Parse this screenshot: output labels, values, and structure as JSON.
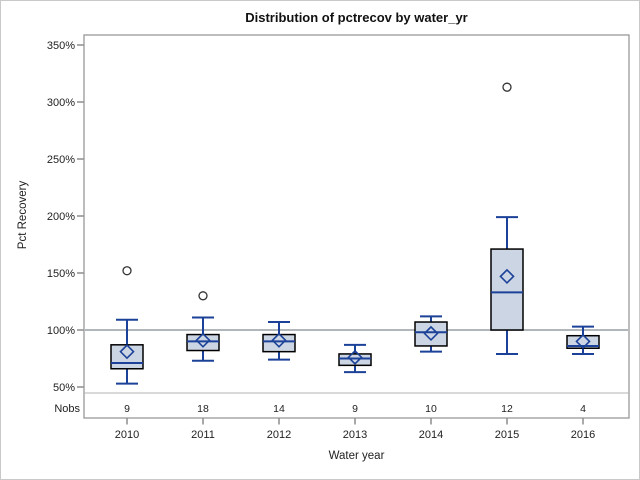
{
  "window": {
    "background": "#ffffff",
    "border_color": "#c9c9c9"
  },
  "chart_data": {
    "type": "boxplot",
    "title": "Distribution of pctrecov by water_yr",
    "xlabel": "Water year",
    "ylabel": "Pct Recovery",
    "nobs_label": "Nobs",
    "categories": [
      "2010",
      "2011",
      "2012",
      "2013",
      "2014",
      "2015",
      "2016"
    ],
    "yticks": [
      {
        "value": 350,
        "label": "350%"
      },
      {
        "value": 300,
        "label": "300%"
      },
      {
        "value": 250,
        "label": "250%"
      },
      {
        "value": 200,
        "label": "200%"
      },
      {
        "value": 150,
        "label": "150%"
      },
      {
        "value": 100,
        "label": "100%"
      },
      {
        "value": 50,
        "label": "50%"
      }
    ],
    "ylim": [
      50,
      350
    ],
    "grid": false,
    "legend": "none",
    "reference_line": 100,
    "series": [
      {
        "category": "2010",
        "n": 9,
        "whisker_low": 53,
        "q1": 66,
        "median": 71,
        "mean": 81,
        "q3": 87,
        "whisker_high": 109,
        "outliers": [
          152
        ]
      },
      {
        "category": "2011",
        "n": 18,
        "whisker_low": 73,
        "q1": 82,
        "median": 90,
        "mean": 91,
        "q3": 96,
        "whisker_high": 111,
        "outliers": [
          130
        ]
      },
      {
        "category": "2012",
        "n": 14,
        "whisker_low": 74,
        "q1": 81,
        "median": 90,
        "mean": 91,
        "q3": 96,
        "whisker_high": 107,
        "outliers": []
      },
      {
        "category": "2013",
        "n": 9,
        "whisker_low": 63,
        "q1": 69,
        "median": 75,
        "mean": 76,
        "q3": 79,
        "whisker_high": 87,
        "outliers": []
      },
      {
        "category": "2014",
        "n": 10,
        "whisker_low": 81,
        "q1": 86,
        "median": 98,
        "mean": 97,
        "q3": 107,
        "whisker_high": 112,
        "outliers": []
      },
      {
        "category": "2015",
        "n": 12,
        "whisker_low": 79,
        "q1": 100,
        "median": 133,
        "mean": 147,
        "q3": 171,
        "whisker_high": 199,
        "outliers": [
          313
        ]
      },
      {
        "category": "2016",
        "n": 4,
        "whisker_low": 79,
        "q1": 84,
        "median": 86,
        "mean": 90,
        "q3": 95,
        "whisker_high": 103,
        "outliers": []
      }
    ],
    "colors": {
      "box_fill": "#ccd5e3",
      "box_border": "#000000",
      "whisker": "#1b4298",
      "median": "#1b4298",
      "mean_marker": "#1b4298",
      "outlier": "#333333",
      "reference_line": "#a6abb0",
      "frame": "#999999",
      "separator": "#b3b3b3",
      "tick": "#707070",
      "text": "#222222"
    }
  }
}
